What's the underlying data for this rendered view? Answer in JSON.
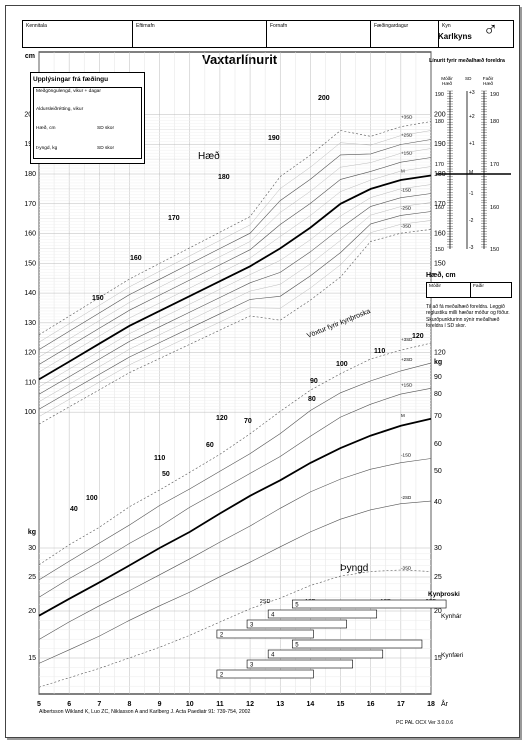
{
  "header_fields": [
    {
      "label": "Kennitala",
      "x": 16,
      "w": 110
    },
    {
      "label": "Eftirnafn",
      "x": 126,
      "w": 134
    },
    {
      "label": "Fornafn",
      "x": 260,
      "w": 104
    },
    {
      "label": "Fæðingardagur",
      "x": 364,
      "w": 68
    },
    {
      "label": "Kyn",
      "x": 432,
      "w": 76
    }
  ],
  "sex_value": "Karlkyns",
  "title": "Vaxtarlínurit",
  "birth_info": {
    "heading": "Upplýsingar frá fæðingu",
    "rows": [
      {
        "label": "Meðgöngulengd, vikur + dagar"
      },
      {
        "label": "Aldursleiðrétting, vikur"
      },
      {
        "label": "Hæð, cm",
        "label2": "SD skor"
      },
      {
        "label": "Þyngd, kg",
        "label2": "SD skor"
      }
    ]
  },
  "parent_panel": {
    "title": "Línurit fyrir meðalhæð foreldra",
    "col1": "Móðir Hæð",
    "col2": "SD",
    "col3": "Faðir Hæð",
    "height_ticks": [
      "190",
      "180",
      "170",
      "160",
      "150"
    ],
    "sd_ticks": [
      "+3",
      "+2",
      "+1",
      "M",
      "-1",
      "-2",
      "-3"
    ]
  },
  "height_box": {
    "heading": "Hæð, cm",
    "mother": "Móðir",
    "father": "Faðir",
    "note": "Til að fá meðalhæð foreldra. Leggið reglustiku milli hæðar móður og föður. Skurðpunkturinn sýnir meðalhæð foreldra í SD skor."
  },
  "labels": {
    "cm": "cm",
    "kg_left": "kg",
    "kg_right": "kg",
    "haed": "Hæð",
    "thyngd": "Þyngd",
    "kynthroska": "Vöxtur fyrir kynþroska",
    "kynthroski": "Kynþroski",
    "kynhar": "Kynhár",
    "kynfaeri": "Kynfæri",
    "ar": "År",
    "ref": "Albertsson Wikland K, Luo ZC, Niklasson A and Karlberg J. Acta Paediatr 91: 739-754, 2002",
    "version": "PC PAL OCX Ver 3.0.0.6"
  },
  "x_axis": [
    "5",
    "6",
    "7",
    "8",
    "9",
    "10",
    "11",
    "12",
    "13",
    "14",
    "15",
    "16",
    "17",
    "18"
  ],
  "left_cm_ticks": [
    "200",
    "190",
    "180",
    "170",
    "160",
    "150",
    "140",
    "130",
    "120",
    "110",
    "100"
  ],
  "left_kg_ticks": [
    "30",
    "25",
    "20",
    "15"
  ],
  "right_cm_ticks": [
    "200",
    "190",
    "180",
    "170",
    "160",
    "150",
    "140",
    "130",
    "120"
  ],
  "right_kg_ticks": [
    "90",
    "80",
    "70",
    "60",
    "50",
    "40",
    "30",
    "25",
    "20",
    "15"
  ],
  "height_sd_labels": [
    "+3SD",
    "+2SD",
    "+1SD",
    "M",
    "-1SD",
    "-2SD",
    "-3SD"
  ],
  "weight_sd_labels": [
    "+3SD",
    "+2SD",
    "+1SD",
    "M",
    "-1SD",
    "-2SD",
    "-3SD"
  ],
  "inline_height_labels": [
    "200",
    "190",
    "180",
    "170",
    "160",
    "150",
    "120",
    "110",
    "100"
  ],
  "inline_weight_labels": [
    "120",
    "110",
    "100",
    "90",
    "80",
    "70",
    "60",
    "50",
    "40"
  ],
  "sd_top": [
    "2SD",
    "1SD",
    "1SD",
    "2SD"
  ],
  "stage_numbers": [
    "5",
    "4",
    "3",
    "2",
    "5",
    "4",
    "3",
    "2"
  ],
  "chart_data": {
    "type": "line",
    "x_label": "År",
    "xlim": [
      5,
      18
    ],
    "height_M": [
      [
        5,
        111
      ],
      [
        6,
        117
      ],
      [
        7,
        123
      ],
      [
        8,
        129
      ],
      [
        9,
        134
      ],
      [
        10,
        139
      ],
      [
        11,
        144
      ],
      [
        12,
        149
      ],
      [
        13,
        155
      ],
      [
        14,
        162
      ],
      [
        15,
        170
      ],
      [
        16,
        175
      ],
      [
        17,
        178
      ],
      [
        18,
        179.5
      ]
    ],
    "weight_M": [
      [
        5,
        19.5
      ],
      [
        6,
        21.8
      ],
      [
        7,
        24.2
      ],
      [
        8,
        27
      ],
      [
        9,
        30
      ],
      [
        10,
        33.5
      ],
      [
        11,
        37.5
      ],
      [
        12,
        42
      ],
      [
        13,
        47
      ],
      [
        14,
        53
      ],
      [
        15,
        58.5
      ],
      [
        16,
        63
      ],
      [
        17,
        66.5
      ],
      [
        18,
        69
      ]
    ]
  }
}
